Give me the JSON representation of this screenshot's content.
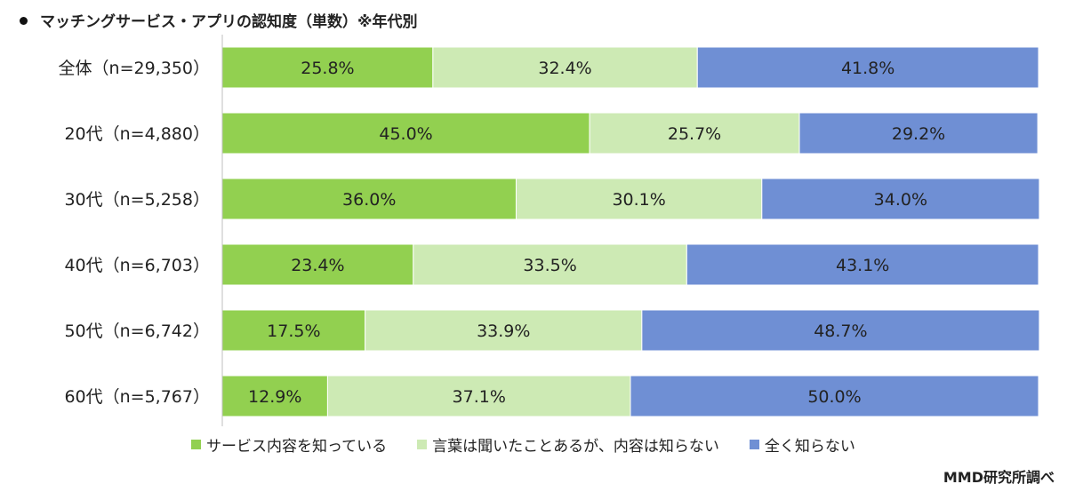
{
  "title": "マッチングサービス・アプリの認知度（単数）※年代別",
  "source": "MMD研究所調べ",
  "chart_data": {
    "type": "bar",
    "orientation": "horizontal",
    "stacked": true,
    "unit": "%",
    "xlim": [
      0,
      100
    ],
    "categories": [
      "全体（n=29,350）",
      "20代（n=4,880）",
      "30代（n=5,258）",
      "40代（n=6,703）",
      "50代（n=6,742）",
      "60代（n=5,767）"
    ],
    "series": [
      {
        "name": "サービス内容を知っている",
        "color": "#92d050",
        "values": [
          25.8,
          45.0,
          36.0,
          23.4,
          17.5,
          12.9
        ],
        "labels": [
          "25.8%",
          "45.0%",
          "36.0%",
          "23.4%",
          "17.5%",
          "12.9%"
        ]
      },
      {
        "name": "言葉は聞いたことあるが、内容は知らない",
        "color": "#cdeab4",
        "values": [
          32.4,
          25.7,
          30.1,
          33.5,
          33.9,
          37.1
        ],
        "labels": [
          "32.4%",
          "25.7%",
          "30.1%",
          "33.5%",
          "33.9%",
          "37.1%"
        ]
      },
      {
        "name": "全く知らない",
        "color": "#6f8fd4",
        "values": [
          41.8,
          29.2,
          34.0,
          43.1,
          48.7,
          50.0
        ],
        "labels": [
          "41.8%",
          "29.2%",
          "34.0%",
          "43.1%",
          "48.7%",
          "50.0%"
        ]
      }
    ],
    "legend_position": "bottom"
  }
}
